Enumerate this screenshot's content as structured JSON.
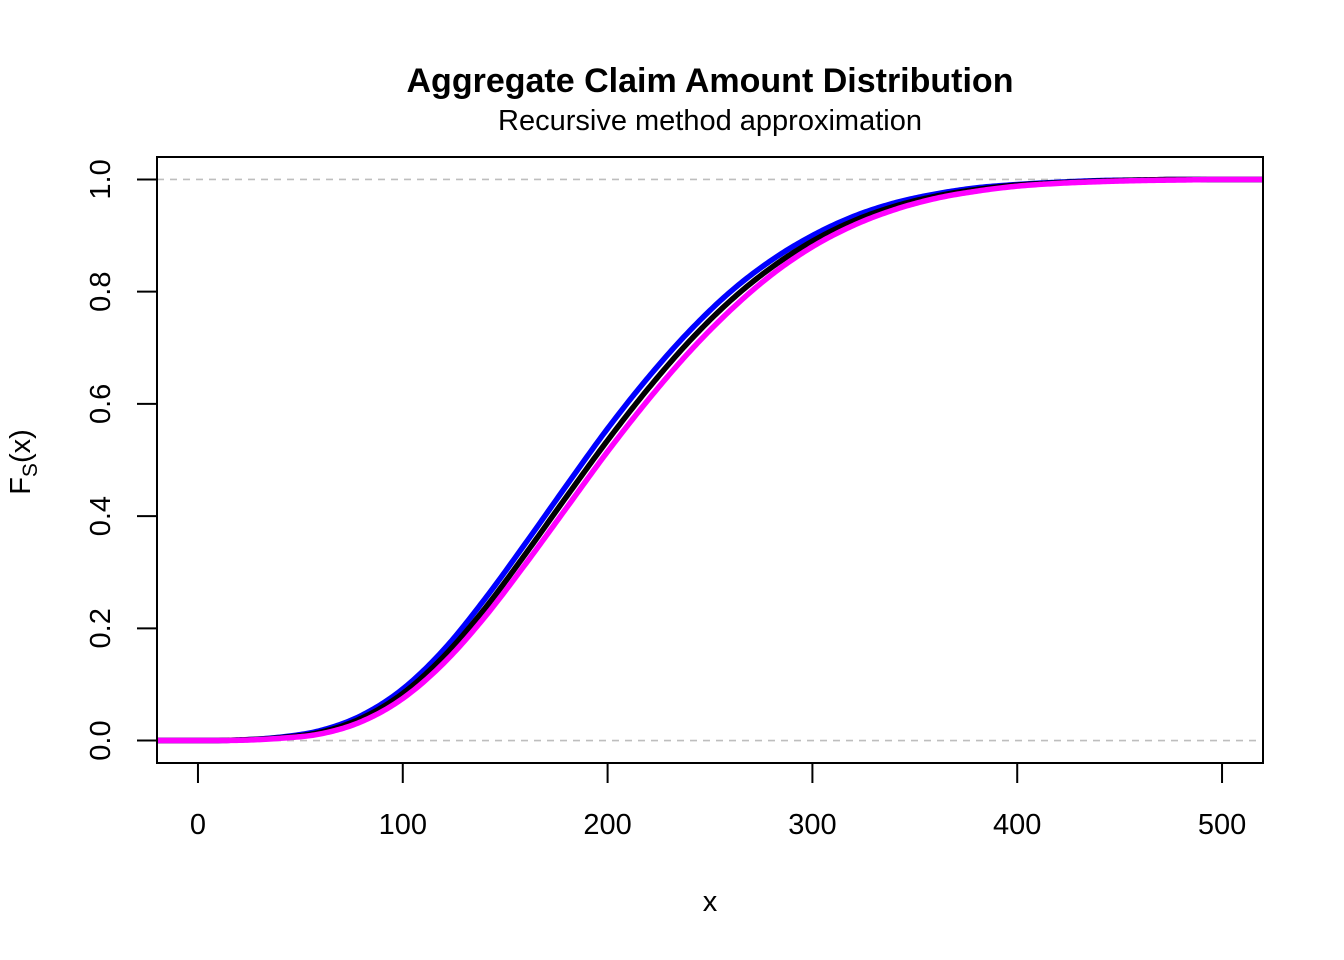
{
  "chart_data": {
    "type": "line",
    "title": "Aggregate Claim Amount Distribution",
    "subtitle": "Recursive method approximation",
    "xlabel": "x",
    "ylabel_main": "F",
    "ylabel_sub": "S",
    "ylabel_tail": "(x)",
    "xlim": [
      -20,
      520
    ],
    "ylim": [
      -0.04,
      1.04
    ],
    "x_ticks": [
      0,
      100,
      200,
      300,
      400,
      500
    ],
    "x_tick_labels": [
      "0",
      "100",
      "200",
      "300",
      "400",
      "500"
    ],
    "y_ticks": [
      0.0,
      0.2,
      0.4,
      0.6,
      0.8,
      1.0
    ],
    "y_tick_labels": [
      "0.0",
      "0.2",
      "0.4",
      "0.6",
      "0.8",
      "1.0"
    ],
    "reference_lines": [
      0,
      1
    ],
    "reference_line_color": "#BEBEBE",
    "grid": false,
    "x": [
      -20,
      0,
      20,
      40,
      60,
      80,
      100,
      120,
      140,
      160,
      180,
      200,
      220,
      240,
      260,
      280,
      300,
      320,
      340,
      360,
      380,
      400,
      420,
      440,
      460,
      480,
      500,
      520
    ],
    "series": [
      {
        "color": "#0000FF",
        "values": [
          0,
          0,
          0.001,
          0.006,
          0.018,
          0.045,
          0.092,
          0.162,
          0.252,
          0.352,
          0.455,
          0.556,
          0.648,
          0.73,
          0.8,
          0.856,
          0.9,
          0.934,
          0.958,
          0.974,
          0.985,
          0.991,
          0.995,
          0.998,
          0.999,
          1.0,
          1.0,
          1.0
        ]
      },
      {
        "color": "#000000",
        "values": [
          0,
          0,
          0.001,
          0.005,
          0.015,
          0.04,
          0.084,
          0.15,
          0.235,
          0.333,
          0.435,
          0.535,
          0.628,
          0.712,
          0.784,
          0.843,
          0.89,
          0.926,
          0.952,
          0.97,
          0.982,
          0.99,
          0.994,
          0.997,
          0.999,
          1.0,
          1.0,
          1.0
        ]
      },
      {
        "color": "#FF00FF",
        "values": [
          0,
          0,
          0.0005,
          0.004,
          0.012,
          0.034,
          0.075,
          0.138,
          0.22,
          0.315,
          0.415,
          0.515,
          0.608,
          0.693,
          0.767,
          0.83,
          0.88,
          0.918,
          0.946,
          0.966,
          0.979,
          0.988,
          0.993,
          0.996,
          0.998,
          0.999,
          1.0,
          1.0
        ]
      }
    ]
  }
}
